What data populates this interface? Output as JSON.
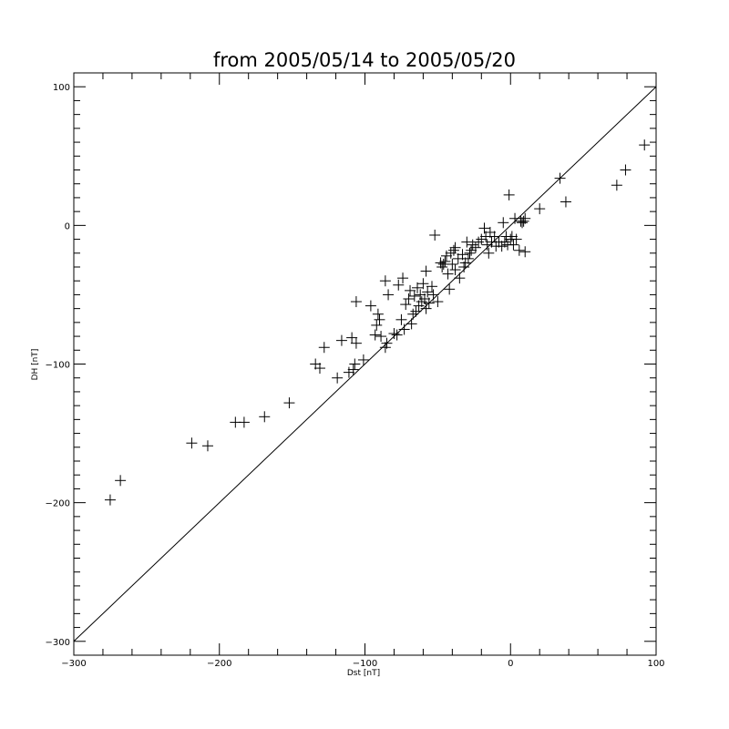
{
  "chart_data": {
    "type": "scatter",
    "title": "from 2005/05/14 to 2005/05/20",
    "xlabel": "Dst  [nT]",
    "ylabel": "DH [nT]",
    "xlim": [
      -300,
      100
    ],
    "ylim": [
      -310,
      110
    ],
    "x_ticks": [
      -300,
      -200,
      -100,
      0,
      100
    ],
    "y_ticks": [
      -300,
      -200,
      -100,
      0,
      100
    ],
    "x_tick_labels": [
      "−300",
      "−200",
      "−100",
      "0",
      "100"
    ],
    "y_tick_labels": [
      "−300",
      "−200",
      "−100",
      "0",
      "100"
    ],
    "x_minor_step": 20,
    "y_minor_step": 10,
    "marker": "plus",
    "color": "#000000",
    "reference_line": {
      "type": "y=x"
    },
    "points": [
      [
        -275,
        -198
      ],
      [
        -268,
        -184
      ],
      [
        -219,
        -157
      ],
      [
        -208,
        -159
      ],
      [
        -189,
        -142
      ],
      [
        -183,
        -142
      ],
      [
        -169,
        -138
      ],
      [
        -152,
        -128
      ],
      [
        -134,
        -100
      ],
      [
        -131,
        -103
      ],
      [
        -128,
        -88
      ],
      [
        -119,
        -110
      ],
      [
        -116,
        -83
      ],
      [
        -111,
        -106
      ],
      [
        -109,
        -81
      ],
      [
        -108,
        -104
      ],
      [
        -107,
        -100
      ],
      [
        -106,
        -85
      ],
      [
        -106,
        -55
      ],
      [
        -101,
        -97
      ],
      [
        -96,
        -58
      ],
      [
        -93,
        -79
      ],
      [
        -92,
        -72
      ],
      [
        -91,
        -64
      ],
      [
        -90,
        -68
      ],
      [
        -89,
        -80
      ],
      [
        -86,
        -88
      ],
      [
        -86,
        -40
      ],
      [
        -85,
        -85
      ],
      [
        -84,
        -50
      ],
      [
        -80,
        -78
      ],
      [
        -78,
        -79
      ],
      [
        -77,
        -43
      ],
      [
        -75,
        -68
      ],
      [
        -74,
        -38
      ],
      [
        -73,
        -75
      ],
      [
        -72,
        -57
      ],
      [
        -70,
        -53
      ],
      [
        -69,
        -47
      ],
      [
        -68,
        -71
      ],
      [
        -67,
        -64
      ],
      [
        -66,
        -51
      ],
      [
        -65,
        -62
      ],
      [
        -64,
        -45
      ],
      [
        -63,
        -58
      ],
      [
        -62,
        -50
      ],
      [
        -61,
        -55
      ],
      [
        -60,
        -42
      ],
      [
        -59,
        -53
      ],
      [
        -58,
        -60
      ],
      [
        -58,
        -33
      ],
      [
        -57,
        -48
      ],
      [
        -56,
        -56
      ],
      [
        -54,
        -44
      ],
      [
        -53,
        -50
      ],
      [
        -52,
        -7
      ],
      [
        -50,
        -55
      ],
      [
        -48,
        -27
      ],
      [
        -47,
        -30
      ],
      [
        -46,
        -28
      ],
      [
        -45,
        -26
      ],
      [
        -44,
        -22
      ],
      [
        -43,
        -35
      ],
      [
        -42,
        -46
      ],
      [
        -41,
        -20
      ],
      [
        -40,
        -28
      ],
      [
        -39,
        -18
      ],
      [
        -38,
        -32
      ],
      [
        -38,
        -16
      ],
      [
        -36,
        -24
      ],
      [
        -35,
        -38
      ],
      [
        -33,
        -21
      ],
      [
        -32,
        -30
      ],
      [
        -31,
        -27
      ],
      [
        -30,
        -12
      ],
      [
        -29,
        -24
      ],
      [
        -28,
        -20
      ],
      [
        -27,
        -18
      ],
      [
        -26,
        -14
      ],
      [
        -24,
        -16
      ],
      [
        -22,
        -12
      ],
      [
        -20,
        -10
      ],
      [
        -18,
        -2
      ],
      [
        -17,
        -8
      ],
      [
        -16,
        -14
      ],
      [
        -15,
        -20
      ],
      [
        -14,
        -5
      ],
      [
        -13,
        -12
      ],
      [
        -11,
        -8
      ],
      [
        -10,
        -15
      ],
      [
        -8,
        -12
      ],
      [
        -6,
        -15
      ],
      [
        -5,
        2
      ],
      [
        -4,
        -12
      ],
      [
        -3,
        -8
      ],
      [
        -2,
        -14
      ],
      [
        -1,
        22
      ],
      [
        0,
        -10
      ],
      [
        1,
        -8
      ],
      [
        2,
        -14
      ],
      [
        3,
        5
      ],
      [
        4,
        -10
      ],
      [
        6,
        -18
      ],
      [
        7,
        3
      ],
      [
        8,
        2
      ],
      [
        9,
        3
      ],
      [
        10,
        5
      ],
      [
        10,
        -19
      ],
      [
        20,
        12
      ],
      [
        34,
        34
      ],
      [
        38,
        17
      ],
      [
        73,
        29
      ],
      [
        79,
        40
      ],
      [
        92,
        58
      ]
    ]
  }
}
